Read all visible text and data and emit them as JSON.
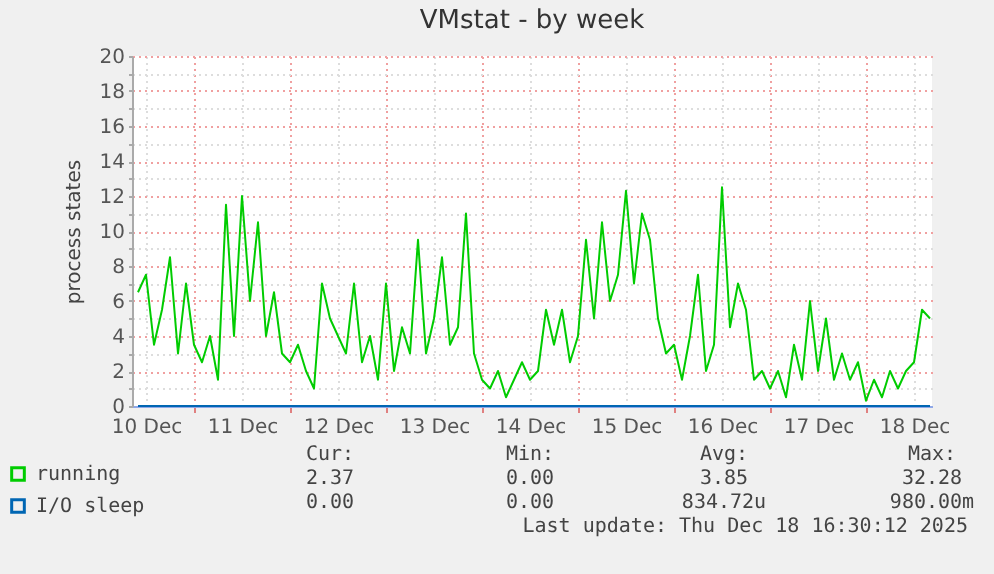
{
  "chart_data": {
    "type": "line",
    "title": "VMstat - by week",
    "ylabel": "process states",
    "x": [
      "2025-12-10T10:00",
      "2025-12-10T12:00",
      "2025-12-10T14:00",
      "2025-12-10T16:00",
      "2025-12-10T18:00",
      "2025-12-10T20:00",
      "2025-12-10T22:00",
      "2025-12-11T00:00",
      "2025-12-11T02:00",
      "2025-12-11T04:00",
      "2025-12-11T06:00",
      "2025-12-11T08:00",
      "2025-12-11T10:00",
      "2025-12-11T12:00",
      "2025-12-11T14:00",
      "2025-12-11T16:00",
      "2025-12-11T18:00",
      "2025-12-11T20:00",
      "2025-12-11T22:00",
      "2025-12-12T00:00",
      "2025-12-12T02:00",
      "2025-12-12T04:00",
      "2025-12-12T06:00",
      "2025-12-12T08:00",
      "2025-12-12T10:00",
      "2025-12-12T12:00",
      "2025-12-12T14:00",
      "2025-12-12T16:00",
      "2025-12-12T18:00",
      "2025-12-12T20:00",
      "2025-12-12T22:00",
      "2025-12-13T00:00",
      "2025-12-13T02:00",
      "2025-12-13T04:00",
      "2025-12-13T06:00",
      "2025-12-13T08:00",
      "2025-12-13T10:00",
      "2025-12-13T12:00",
      "2025-12-13T14:00",
      "2025-12-13T16:00",
      "2025-12-13T18:00",
      "2025-12-13T20:00",
      "2025-12-13T22:00",
      "2025-12-14T00:00",
      "2025-12-14T02:00",
      "2025-12-14T04:00",
      "2025-12-14T06:00",
      "2025-12-14T08:00",
      "2025-12-14T10:00",
      "2025-12-14T12:00",
      "2025-12-14T14:00",
      "2025-12-14T16:00",
      "2025-12-14T18:00",
      "2025-12-14T20:00",
      "2025-12-14T22:00",
      "2025-12-15T00:00",
      "2025-12-15T02:00",
      "2025-12-15T04:00",
      "2025-12-15T06:00",
      "2025-12-15T08:00",
      "2025-12-15T10:00",
      "2025-12-15T12:00",
      "2025-12-15T14:00",
      "2025-12-15T16:00",
      "2025-12-15T18:00",
      "2025-12-15T20:00",
      "2025-12-15T22:00",
      "2025-12-16T00:00",
      "2025-12-16T02:00",
      "2025-12-16T04:00",
      "2025-12-16T06:00",
      "2025-12-16T08:00",
      "2025-12-16T10:00",
      "2025-12-16T12:00",
      "2025-12-16T14:00",
      "2025-12-16T16:00",
      "2025-12-16T18:00",
      "2025-12-16T20:00",
      "2025-12-16T22:00",
      "2025-12-17T00:00",
      "2025-12-17T02:00",
      "2025-12-17T04:00",
      "2025-12-17T06:00",
      "2025-12-17T08:00",
      "2025-12-17T10:00",
      "2025-12-17T12:00",
      "2025-12-17T14:00",
      "2025-12-17T16:00",
      "2025-12-17T18:00",
      "2025-12-17T20:00",
      "2025-12-17T22:00",
      "2025-12-18T00:00",
      "2025-12-18T02:00",
      "2025-12-18T04:00",
      "2025-12-18T06:00",
      "2025-12-18T08:00",
      "2025-12-18T10:00",
      "2025-12-18T12:00",
      "2025-12-18T14:00",
      "2025-12-18T16:00"
    ],
    "series": [
      {
        "name": "running",
        "color": "#00cc00",
        "values": [
          6.5,
          7.5,
          3.5,
          5.5,
          8.5,
          3,
          7,
          3.5,
          2.5,
          4,
          1.5,
          11.5,
          4,
          12,
          6,
          10.5,
          4,
          6.5,
          3,
          2.5,
          3.5,
          2,
          1,
          7,
          5,
          4,
          3,
          7,
          2.5,
          4,
          1.5,
          7,
          2,
          4.5,
          3,
          9.5,
          3,
          5,
          8.5,
          3.5,
          4.5,
          11,
          3,
          1.5,
          1,
          2,
          0.5,
          1.5,
          2.5,
          1.5,
          2,
          5.5,
          3.5,
          5.5,
          2.5,
          4,
          9.5,
          5,
          10.5,
          6,
          7.5,
          12.3,
          7,
          11,
          9.5,
          5,
          3,
          3.5,
          1.5,
          4,
          7.5,
          2,
          3.5,
          12.5,
          4.5,
          7,
          5.5,
          1.5,
          2,
          1,
          2,
          0.5,
          3.5,
          1.5,
          6,
          2,
          5,
          1.5,
          3,
          1.5,
          2.5,
          0.3,
          1.5,
          0.5,
          2,
          1,
          2,
          2.5,
          5.5,
          5
        ]
      },
      {
        "name": "I/O sleep",
        "color": "#0066b3",
        "values": [
          0,
          0,
          0,
          0,
          0,
          0,
          0,
          0,
          0,
          0,
          0,
          0,
          0,
          0,
          0,
          0,
          0,
          0,
          0,
          0,
          0,
          0,
          0,
          0,
          0,
          0,
          0,
          0,
          0,
          0,
          0,
          0,
          0,
          0,
          0,
          0,
          0,
          0,
          0,
          0,
          0,
          0,
          0,
          0,
          0,
          0,
          0,
          0,
          0,
          0,
          0,
          0,
          0,
          0,
          0,
          0,
          0,
          0,
          0,
          0,
          0,
          0,
          0,
          0,
          0,
          0,
          0,
          0,
          0,
          0,
          0,
          0,
          0,
          0,
          0,
          0,
          0,
          0,
          0,
          0,
          0,
          0,
          0,
          0,
          0,
          0,
          0,
          0,
          0,
          0,
          0,
          0,
          0,
          0,
          0,
          0,
          0,
          0,
          0,
          0
        ]
      }
    ],
    "xlim": [
      "2025-12-10T08:30",
      "2025-12-18T16:30"
    ],
    "xticks": [
      {
        "value": "2025-12-10T12:00",
        "label": "10 Dec"
      },
      {
        "value": "2025-12-11T00:00",
        "label": null
      },
      {
        "value": "2025-12-11T12:00",
        "label": "11 Dec"
      },
      {
        "value": "2025-12-12T00:00",
        "label": null
      },
      {
        "value": "2025-12-12T12:00",
        "label": "12 Dec"
      },
      {
        "value": "2025-12-13T00:00",
        "label": null
      },
      {
        "value": "2025-12-13T12:00",
        "label": "13 Dec"
      },
      {
        "value": "2025-12-14T00:00",
        "label": null
      },
      {
        "value": "2025-12-14T12:00",
        "label": "14 Dec"
      },
      {
        "value": "2025-12-15T00:00",
        "label": null
      },
      {
        "value": "2025-12-15T12:00",
        "label": "15 Dec"
      },
      {
        "value": "2025-12-16T00:00",
        "label": null
      },
      {
        "value": "2025-12-16T12:00",
        "label": "16 Dec"
      },
      {
        "value": "2025-12-17T00:00",
        "label": null
      },
      {
        "value": "2025-12-17T12:00",
        "label": "17 Dec"
      },
      {
        "value": "2025-12-18T00:00",
        "label": null
      },
      {
        "value": "2025-12-18T12:00",
        "label": "18 Dec"
      }
    ],
    "ylim": [
      0,
      20
    ],
    "yticks": [
      0,
      {
        "value": 1,
        "label": null
      },
      2,
      {
        "value": 3,
        "label": null
      },
      4,
      {
        "value": 5,
        "label": null
      },
      6,
      {
        "value": 7,
        "label": null
      },
      8,
      {
        "value": 9,
        "label": null
      },
      10,
      {
        "value": 11,
        "label": null
      },
      12,
      {
        "value": 13,
        "label": null
      },
      14,
      {
        "value": 15,
        "label": null
      },
      16,
      {
        "value": 17,
        "label": null
      },
      18,
      {
        "value": 19,
        "label": null
      },
      20
    ],
    "grid": true,
    "legend": "bottom left",
    "line_style": "solid",
    "annotations": [
      "Cur:",
      "Min:",
      "Avg:",
      "Max:",
      "2.37",
      "0.00",
      "3.85",
      "32.28",
      "0.00",
      "0.00",
      "834.72u",
      "980.00m",
      "Last update: Thu Dec 18 16:30:12 2025"
    ]
  }
}
